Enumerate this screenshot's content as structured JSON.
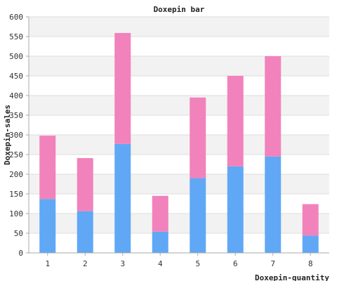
{
  "chart_data": {
    "type": "bar",
    "stacked": true,
    "title": "Doxepin bar",
    "xlabel": "Doxepin-quantity",
    "ylabel": "Doxepin-sales",
    "categories": [
      "1",
      "2",
      "3",
      "4",
      "5",
      "6",
      "7",
      "8"
    ],
    "ylim": [
      0,
      600
    ],
    "yticks": [
      0,
      50,
      100,
      150,
      200,
      250,
      300,
      350,
      400,
      450,
      500,
      550,
      600
    ],
    "grid": true,
    "legend": "none",
    "series": [
      {
        "color": "#60a8f5",
        "values": [
          137,
          106,
          277,
          54,
          190,
          220,
          245,
          44
        ]
      },
      {
        "color": "#f282bb",
        "values": [
          161,
          135,
          282,
          91,
          205,
          230,
          255,
          80
        ]
      }
    ]
  }
}
